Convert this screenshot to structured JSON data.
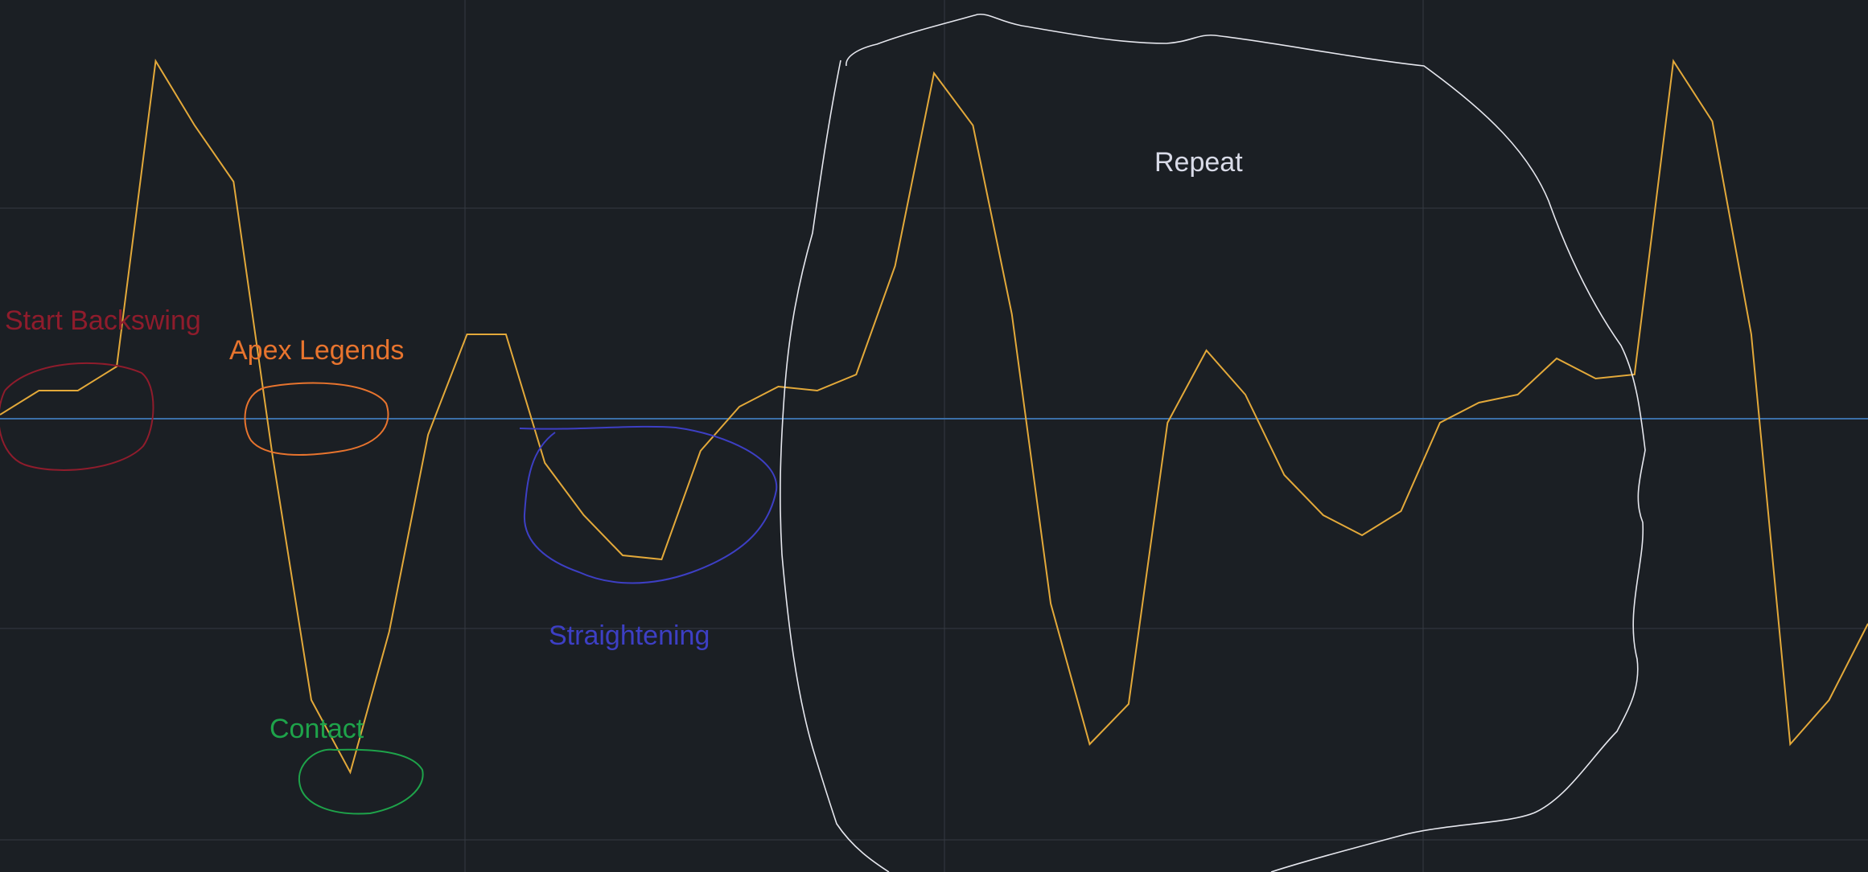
{
  "chart_data": {
    "type": "line",
    "title": "",
    "xlabel": "",
    "ylabel": "",
    "xlim": [
      0,
      48
    ],
    "ylim": [
      -1.0,
      1.0
    ],
    "grid": true,
    "baseline_value": 0.0,
    "series": [
      {
        "color": "#e3a93a",
        "x": [
          0,
          1,
          2,
          3,
          4,
          5,
          6,
          7,
          8,
          9,
          10,
          11,
          12,
          13,
          14,
          15,
          16,
          17,
          18,
          19,
          20,
          21,
          22,
          23,
          24,
          25,
          26,
          27,
          28,
          29,
          30,
          31,
          32,
          33,
          34,
          35,
          36,
          37,
          38,
          39,
          40,
          41,
          42,
          43,
          44,
          45,
          46,
          47,
          48
        ],
        "y": [
          0.01,
          0.07,
          0.07,
          0.13,
          0.89,
          0.73,
          0.59,
          -0.09,
          -0.7,
          -0.88,
          -0.53,
          -0.04,
          0.21,
          0.21,
          -0.11,
          -0.24,
          -0.34,
          -0.35,
          -0.08,
          0.03,
          0.08,
          0.07,
          0.11,
          0.38,
          0.86,
          0.73,
          0.26,
          -0.46,
          -0.81,
          -0.71,
          -0.01,
          0.17,
          0.06,
          -0.14,
          -0.24,
          -0.29,
          -0.23,
          -0.01,
          0.04,
          0.06,
          0.15,
          0.1,
          0.11,
          0.89,
          0.74,
          0.21,
          -0.81,
          -0.7,
          -0.51
        ]
      },
      {
        "color": "#3b6fa8",
        "x": [
          0,
          48
        ],
        "y": [
          0.0,
          0.0
        ]
      }
    ]
  },
  "annotations": {
    "start_backswing": {
      "label": "Start Backswing",
      "color": "#8f1c2c"
    },
    "apex_legends": {
      "label": "Apex Legends",
      "color": "#e8742e"
    },
    "straightening": {
      "label": "Straightening",
      "color": "#3d3fc4"
    },
    "contact": {
      "label": "Contact",
      "color": "#1ea34a"
    },
    "repeat": {
      "label": "Repeat",
      "color": "#d9dbe8"
    }
  },
  "colors": {
    "background": "#1b1f24",
    "grid": "#353a42"
  }
}
